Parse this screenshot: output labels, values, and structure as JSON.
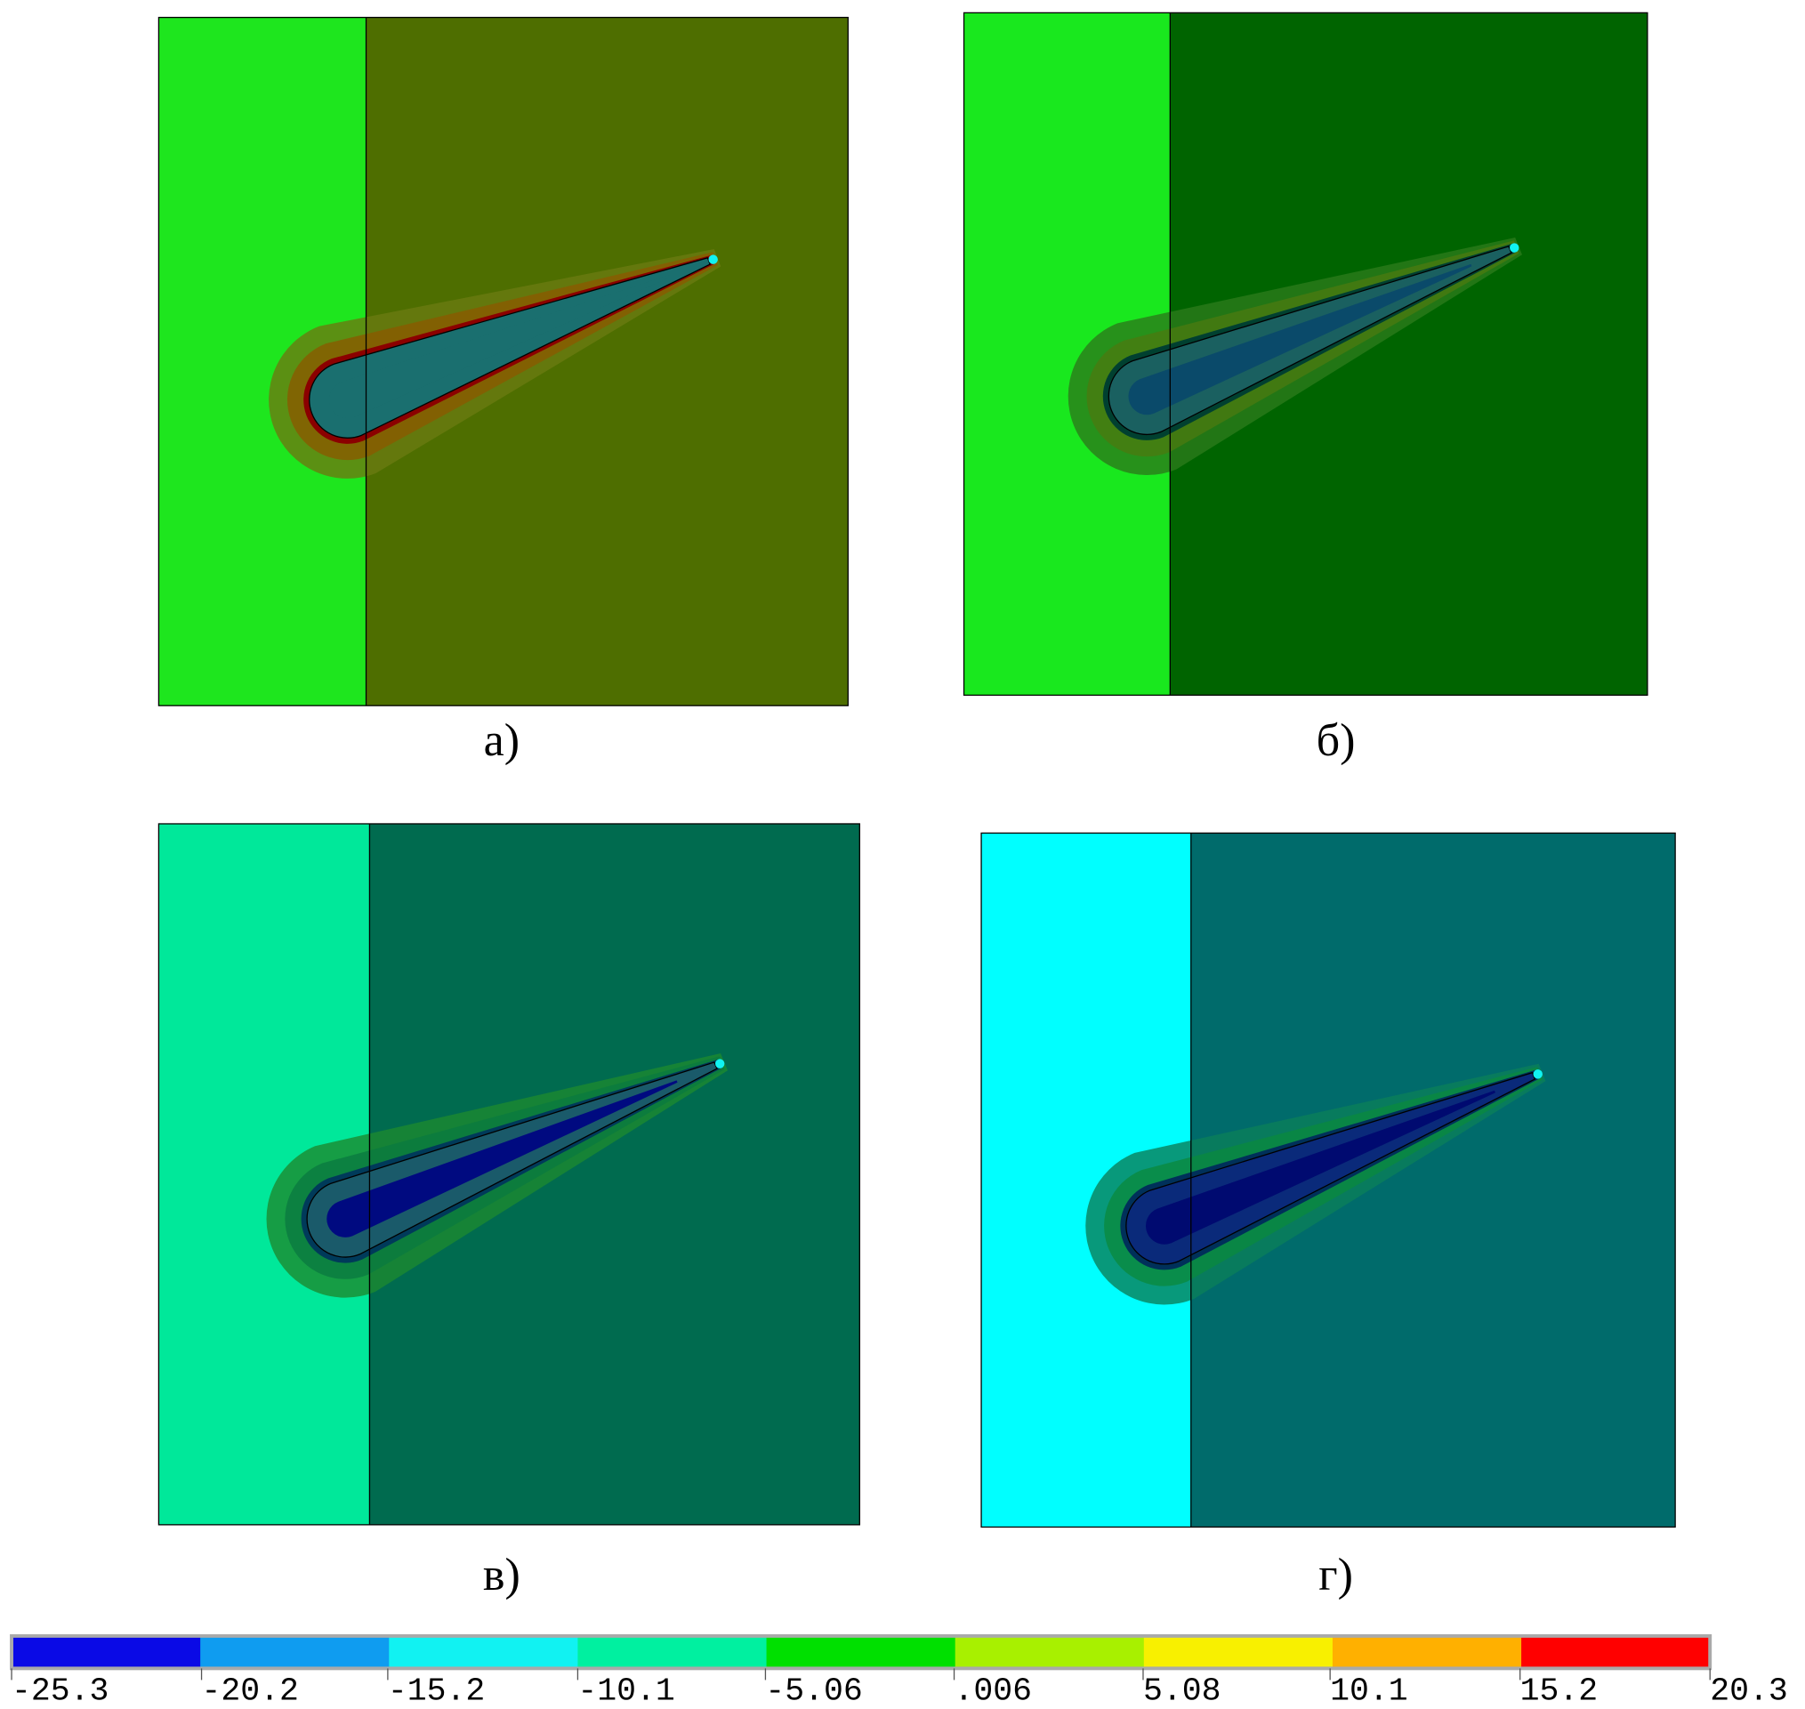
{
  "panels": [
    {
      "label": "а)",
      "colors": {
        "left": "#1ee61e",
        "right": "#4e6e00",
        "halo": "#6a7a10",
        "halo2": "#8a5a00",
        "edge": "#8b0000",
        "body": "#1a6f6f",
        "core": "#1a6f6f"
      }
    },
    {
      "label": "б)",
      "colors": {
        "left": "#19e81e",
        "right": "#006400",
        "halo": "#2a7a1a",
        "halo2": "#4a7a10",
        "edge": "#004030",
        "body": "#1a6060",
        "core": "#0a4a6a"
      }
    },
    {
      "label": "в)",
      "colors": {
        "left": "#00e89a",
        "right": "#006b4f",
        "halo": "#1b8a30",
        "halo2": "#0a7a40",
        "edge": "#003a5a",
        "body": "#1a5a6a",
        "core": "#000a80"
      }
    },
    {
      "label": "г)",
      "colors": {
        "left": "#00ffff",
        "right": "#006b6b",
        "halo": "#0a7f5a",
        "halo2": "#0a8a40",
        "edge": "#00305a",
        "body": "#0a2a7a",
        "core": "#000a70"
      }
    }
  ],
  "legend": {
    "colors": [
      "#0a0ae6",
      "#0f9cf0",
      "#11f2f2",
      "#00f0a0",
      "#00e000",
      "#a8f000",
      "#f8f000",
      "#ffb000",
      "#ff0000"
    ],
    "ticks": [
      -25.3,
      -20.2,
      -15.2,
      -10.1,
      -5.06,
      {
        "value": 0.006,
        "label": ".006"
      },
      5.08,
      10.1,
      15.2,
      20.3
    ]
  }
}
